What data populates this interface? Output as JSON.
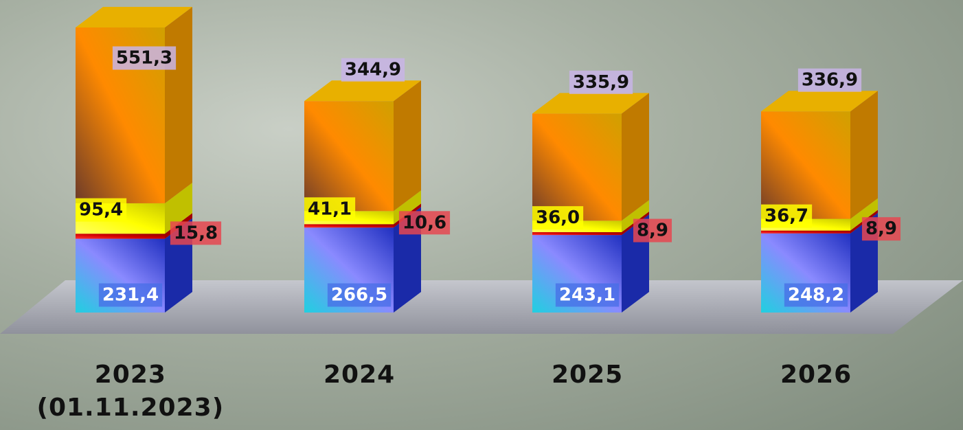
{
  "chart_data": {
    "type": "stacked-bar-3d",
    "categories": [
      "2023\n(01.11.2023)",
      "2024",
      "2025",
      "2026"
    ],
    "series": [
      {
        "name": null,
        "color": "#3a5fe0",
        "values": [
          231.4,
          266.5,
          243.1,
          248.2
        ],
        "value_labels": [
          "231,4",
          "266,5",
          "243,1",
          "248,2"
        ]
      },
      {
        "name": null,
        "color": "#e01010",
        "values": [
          15.8,
          10.6,
          8.9,
          8.9
        ],
        "value_labels": [
          "15,8",
          "10,6",
          "8,9",
          "8,9"
        ]
      },
      {
        "name": null,
        "color": "#ffff00",
        "values": [
          95.4,
          41.1,
          36.0,
          36.7
        ],
        "value_labels": [
          "95,4",
          "41,1",
          "36,0",
          "36,7"
        ]
      },
      {
        "name": null,
        "color": "#ff8c00",
        "values": [
          551.3,
          344.9,
          335.9,
          336.9
        ],
        "value_labels": [
          "551,3",
          "344,9",
          "335,9",
          "336,9"
        ]
      }
    ]
  }
}
